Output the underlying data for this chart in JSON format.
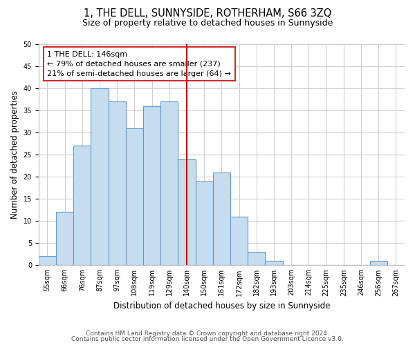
{
  "title": "1, THE DELL, SUNNYSIDE, ROTHERHAM, S66 3ZQ",
  "subtitle": "Size of property relative to detached houses in Sunnyside",
  "xlabel": "Distribution of detached houses by size in Sunnyside",
  "ylabel": "Number of detached properties",
  "bin_labels": [
    "55sqm",
    "66sqm",
    "76sqm",
    "87sqm",
    "97sqm",
    "108sqm",
    "119sqm",
    "129sqm",
    "140sqm",
    "150sqm",
    "161sqm",
    "172sqm",
    "182sqm",
    "193sqm",
    "203sqm",
    "214sqm",
    "225sqm",
    "235sqm",
    "246sqm",
    "256sqm",
    "267sqm"
  ],
  "bar_heights": [
    2,
    12,
    27,
    40,
    37,
    31,
    36,
    37,
    24,
    19,
    21,
    11,
    3,
    1,
    0,
    0,
    0,
    0,
    0,
    1,
    0
  ],
  "bar_left_edges": [
    0,
    1,
    2,
    3,
    4,
    5,
    6,
    7,
    8,
    9,
    10,
    11,
    12,
    13,
    14,
    15,
    16,
    17,
    18,
    19,
    20
  ],
  "n_bins": 21,
  "bar_color": "#c6ddf0",
  "bar_edge_color": "#5b9bd5",
  "ref_line_bin": 8.5,
  "ref_line_color": "#cc0000",
  "annotation_line1": "1 THE DELL: 146sqm",
  "annotation_line2": "← 79% of detached houses are smaller (237)",
  "annotation_line3": "21% of semi-detached houses are larger (64) →",
  "annotation_box_color": "#cc0000",
  "ylim": [
    0,
    50
  ],
  "yticks": [
    0,
    5,
    10,
    15,
    20,
    25,
    30,
    35,
    40,
    45,
    50
  ],
  "grid_color": "#d0d0d0",
  "bg_color": "#ffffff",
  "footer1": "Contains HM Land Registry data © Crown copyright and database right 2024.",
  "footer2": "Contains public sector information licensed under the Open Government Licence v3.0.",
  "title_fontsize": 10.5,
  "subtitle_fontsize": 9,
  "axis_label_fontsize": 8.5,
  "tick_fontsize": 7,
  "annotation_fontsize": 8,
  "footer_fontsize": 6.5
}
